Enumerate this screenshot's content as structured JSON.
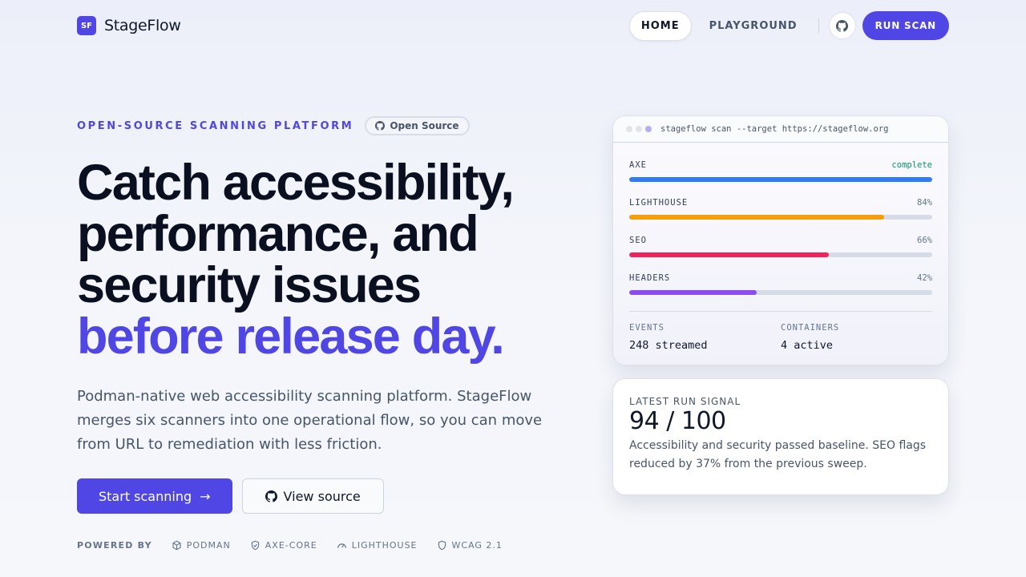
{
  "nav": {
    "logo_mark": "SF",
    "brand": "StageFlow",
    "links": [
      {
        "label": "HOME",
        "active": true
      },
      {
        "label": "PLAYGROUND",
        "active": false
      }
    ],
    "github_icon": "github-icon",
    "run_scan": "RUN SCAN"
  },
  "hero": {
    "eyebrow": "OPEN-SOURCE SCANNING PLATFORM",
    "badge": "Open Source",
    "title_lines": [
      "Catch accessibility,",
      "performance, and",
      "security issues"
    ],
    "title_accent": "before release day.",
    "lead": "Podman-native web accessibility scanning platform. StageFlow merges six scanners into one operational flow, so you can move from URL to remediation with less friction.",
    "cta_primary": "Start scanning",
    "cta_secondary": "View source",
    "powered_label": "POWERED BY",
    "powered": [
      {
        "label": "PODMAN",
        "icon": "cube-icon"
      },
      {
        "label": "AXE-CORE",
        "icon": "shield-check-icon"
      },
      {
        "label": "LIGHTHOUSE",
        "icon": "gauge-icon"
      },
      {
        "label": "WCAG 2.1",
        "icon": "shield-icon"
      }
    ]
  },
  "terminal": {
    "command": "stageflow scan --target https://stageflow.org",
    "scanners": [
      {
        "name": "AXE",
        "status": "complete",
        "progress": 100,
        "color": "#2f7cf6"
      },
      {
        "name": "LIGHTHOUSE",
        "status": "84%",
        "progress": 84,
        "color": "#f59e0b"
      },
      {
        "name": "SEO",
        "status": "66%",
        "progress": 66,
        "color": "#f0245a"
      },
      {
        "name": "HEADERS",
        "status": "42%",
        "progress": 42,
        "color": "#8b4cf0"
      }
    ],
    "stats": [
      {
        "label": "EVENTS",
        "value": "248 streamed"
      },
      {
        "label": "CONTAINERS",
        "value": "4 active"
      }
    ]
  },
  "signal": {
    "label": "LATEST RUN SIGNAL",
    "score": "94 / 100",
    "description": "Accessibility and security passed baseline. SEO flags reduced by 37% from the previous sweep."
  }
}
